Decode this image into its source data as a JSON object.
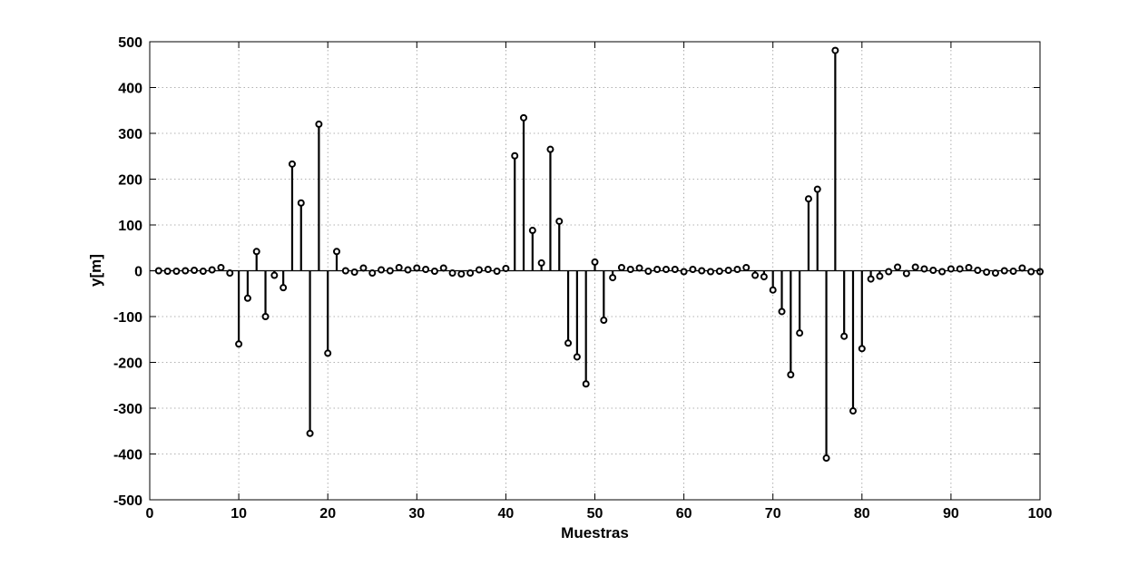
{
  "chart_data": {
    "type": "stem",
    "title": "",
    "xlabel": "Muestras",
    "ylabel": "y[m]",
    "xlim": [
      0,
      100
    ],
    "ylim": [
      -500,
      500
    ],
    "xticks": [
      0,
      10,
      20,
      30,
      40,
      50,
      60,
      70,
      80,
      90,
      100
    ],
    "yticks": [
      -500,
      -400,
      -300,
      -200,
      -100,
      0,
      100,
      200,
      300,
      400,
      500
    ],
    "grid": true,
    "marker": "circle",
    "color": "#000000",
    "x": [
      1,
      2,
      3,
      4,
      5,
      6,
      7,
      8,
      9,
      10,
      11,
      12,
      13,
      14,
      15,
      16,
      17,
      18,
      19,
      20,
      21,
      22,
      23,
      24,
      25,
      26,
      27,
      28,
      29,
      30,
      31,
      32,
      33,
      34,
      35,
      36,
      37,
      38,
      39,
      40,
      41,
      42,
      43,
      44,
      45,
      46,
      47,
      48,
      49,
      50,
      51,
      52,
      53,
      54,
      55,
      56,
      57,
      58,
      59,
      60,
      61,
      62,
      63,
      64,
      65,
      66,
      67,
      68,
      69,
      70,
      71,
      72,
      73,
      74,
      75,
      76,
      77,
      78,
      79,
      80,
      81,
      82,
      83,
      84,
      85,
      86,
      87,
      88,
      89,
      90,
      91,
      92,
      93,
      94,
      95,
      96,
      97,
      98,
      99,
      100
    ],
    "values": [
      0,
      -1,
      -1,
      0,
      1,
      -1,
      2,
      7,
      -5,
      -160,
      -60,
      42,
      -100,
      -10,
      -37,
      233,
      148,
      -355,
      320,
      -180,
      42,
      0,
      -3,
      6,
      -5,
      2,
      0,
      7,
      2,
      6,
      3,
      -1,
      6,
      -5,
      -7,
      -5,
      2,
      3,
      -1,
      5,
      251,
      334,
      88,
      17,
      265,
      108,
      -158,
      -188,
      -247,
      19,
      -108,
      -15,
      7,
      3,
      6,
      -1,
      3,
      3,
      3,
      -2,
      3,
      0,
      -2,
      -1,
      1,
      3,
      7,
      -10,
      -13,
      -42,
      -89,
      -227,
      -136,
      157,
      178,
      -409,
      481,
      -143,
      -306,
      -170,
      -18,
      -12,
      -2,
      8,
      -6,
      8,
      4,
      1,
      -2,
      4,
      4,
      7,
      1,
      -3,
      -5,
      0,
      -1,
      6,
      -2,
      -2
    ]
  }
}
